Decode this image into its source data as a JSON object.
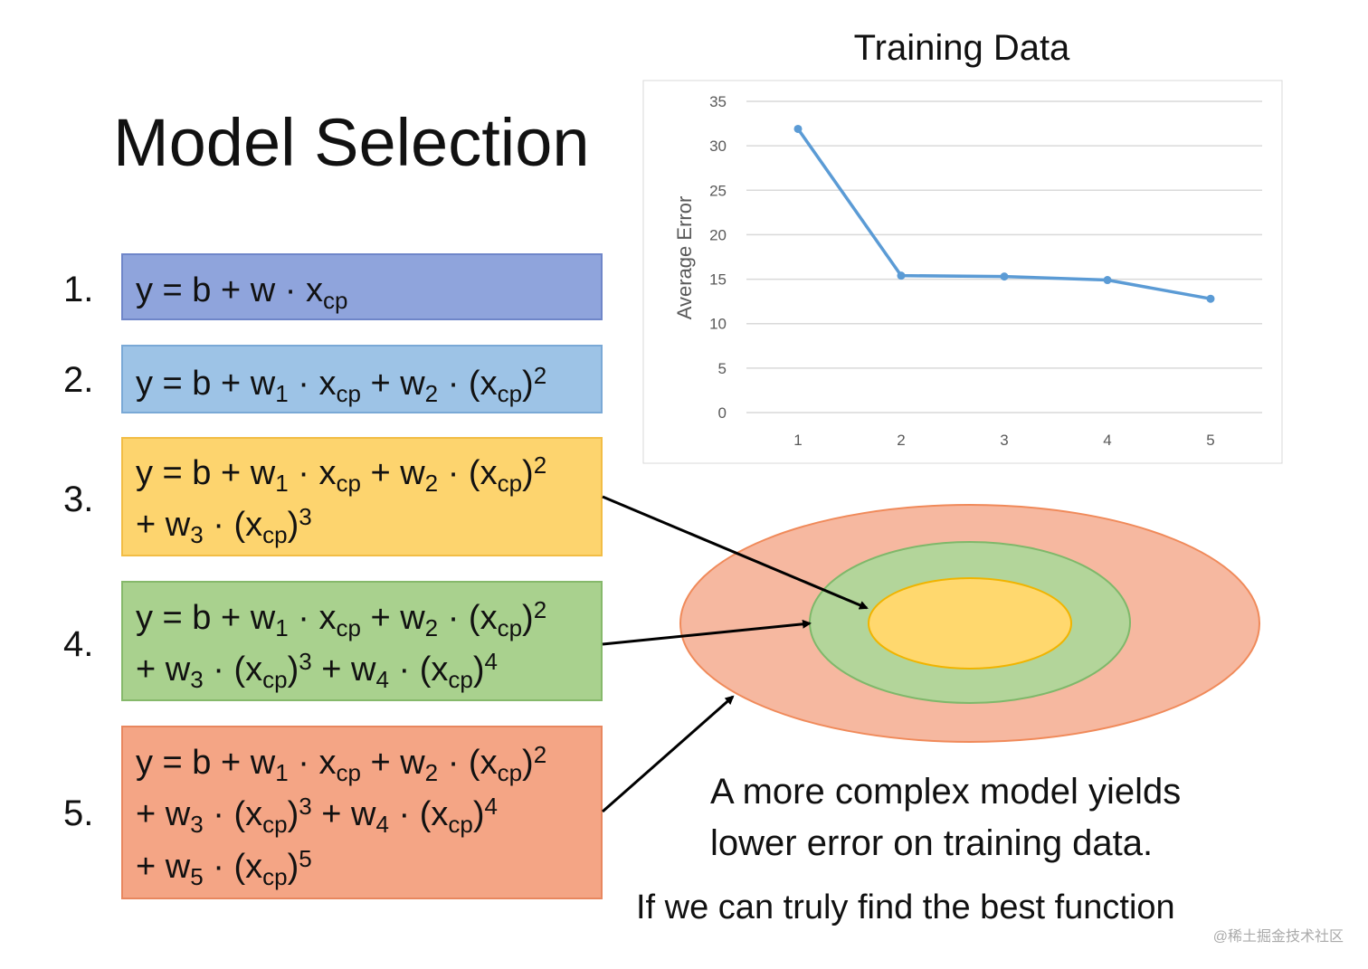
{
  "title": "Model Selection",
  "models": [
    {
      "number": "1.",
      "lines": [
        [
          "y = b + w · x",
          {
            "sub": "cp"
          }
        ]
      ]
    },
    {
      "number": "2.",
      "lines": [
        [
          "y = b + w",
          {
            "sub": "1"
          },
          " · x",
          {
            "sub": "cp"
          },
          " + w",
          {
            "sub": "2"
          },
          " · (x",
          {
            "sub": "cp"
          },
          ")",
          {
            "sup": "2"
          }
        ]
      ]
    },
    {
      "number": "3.",
      "lines": [
        [
          "y = b + w",
          {
            "sub": "1"
          },
          " · x",
          {
            "sub": "cp"
          },
          " + w",
          {
            "sub": "2"
          },
          " · (x",
          {
            "sub": "cp"
          },
          ")",
          {
            "sup": "2"
          }
        ],
        [
          "+ w",
          {
            "sub": "3"
          },
          " · (x",
          {
            "sub": "cp"
          },
          ")",
          {
            "sup": "3"
          }
        ]
      ]
    },
    {
      "number": "4.",
      "lines": [
        [
          "y = b + w",
          {
            "sub": "1"
          },
          " · x",
          {
            "sub": "cp"
          },
          " + w",
          {
            "sub": "2"
          },
          " · (x",
          {
            "sub": "cp"
          },
          ")",
          {
            "sup": "2"
          }
        ],
        [
          "+ w",
          {
            "sub": "3"
          },
          " · (x",
          {
            "sub": "cp"
          },
          ")",
          {
            "sup": "3"
          },
          " + w",
          {
            "sub": "4"
          },
          " · (x",
          {
            "sub": "cp"
          },
          ")",
          {
            "sup": "4"
          }
        ]
      ]
    },
    {
      "number": "5.",
      "lines": [
        [
          "y = b + w",
          {
            "sub": "1"
          },
          " · x",
          {
            "sub": "cp"
          },
          " + w",
          {
            "sub": "2"
          },
          " · (x",
          {
            "sub": "cp"
          },
          ")",
          {
            "sup": "2"
          }
        ],
        [
          "+ w",
          {
            "sub": "3"
          },
          " · (x",
          {
            "sub": "cp"
          },
          ")",
          {
            "sup": "3"
          },
          " + w",
          {
            "sub": "4"
          },
          " · (x",
          {
            "sub": "cp"
          },
          ")",
          {
            "sup": "4"
          }
        ],
        [
          "+ w",
          {
            "sub": "5"
          },
          " · (x",
          {
            "sub": "cp"
          },
          ")",
          {
            "sup": "5"
          }
        ]
      ]
    }
  ],
  "chart_data": {
    "type": "line",
    "title": "Training Data",
    "y_label": "Average Error",
    "categories": [
      "1",
      "2",
      "3",
      "4",
      "5"
    ],
    "series": [
      {
        "name": "Average Error",
        "color": "#5b9bd5",
        "values": [
          31.9,
          15.4,
          15.3,
          14.9,
          12.8
        ]
      }
    ],
    "ylim": [
      0,
      35
    ],
    "yticks": [
      0,
      5,
      10,
      15,
      20,
      25,
      30,
      35
    ],
    "grid": true
  },
  "notes": [
    "A more complex model yields",
    "lower error on training data.",
    "If we can truly find the best function"
  ],
  "watermark": "@稀土掘金技术社区"
}
